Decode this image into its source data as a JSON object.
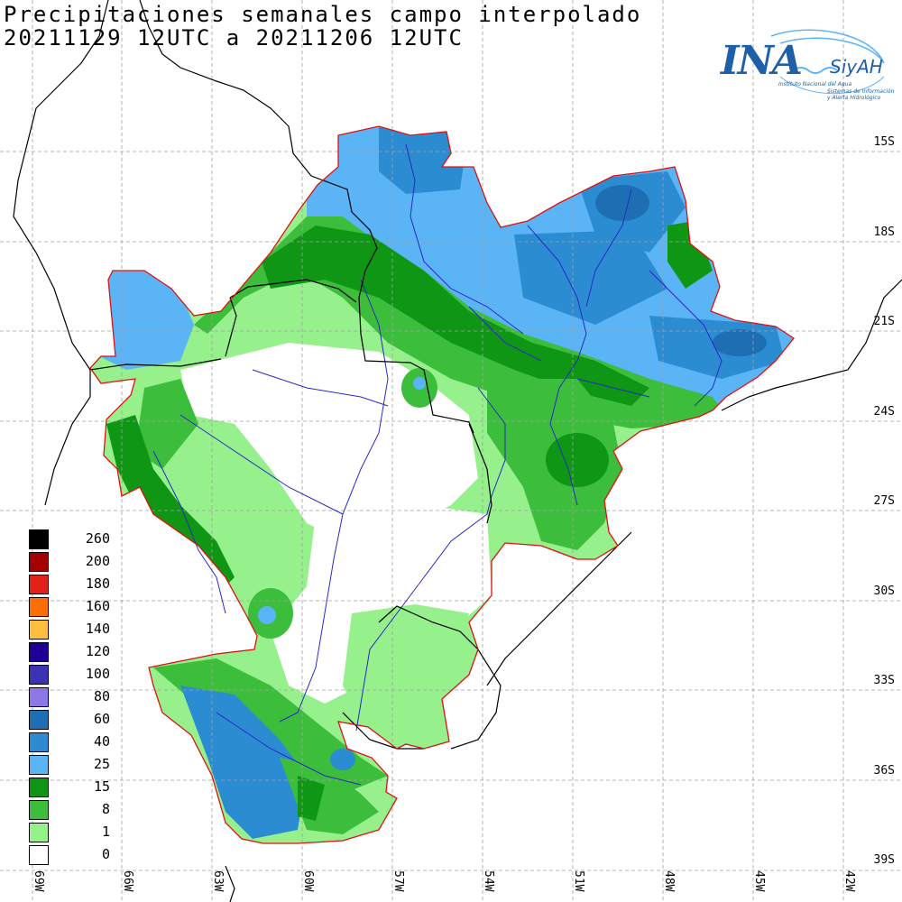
{
  "title": {
    "line1": "Precipitaciones semanales campo interpolado",
    "line2": "20211129 12UTC a 20211206 12UTC"
  },
  "logo": {
    "ina": "INA",
    "siyah": "SiyAH",
    "subtitle1": "Instituto Nacional del Agua",
    "subtitle2": "Sistemas de Información",
    "subtitle3": "y Alerta Hidrológico"
  },
  "lat_labels": [
    "15S",
    "18S",
    "21S",
    "24S",
    "27S",
    "30S",
    "33S",
    "36S",
    "39S"
  ],
  "lon_labels": [
    "69W",
    "66W",
    "63W",
    "60W",
    "57W",
    "54W",
    "51W",
    "48W",
    "45W",
    "42W"
  ],
  "legend": [
    {
      "label": "260",
      "color": "#000000"
    },
    {
      "label": "200",
      "color": "#a50000"
    },
    {
      "label": "180",
      "color": "#e32119"
    },
    {
      "label": "160",
      "color": "#ff6e00"
    },
    {
      "label": "140",
      "color": "#ffbe3c"
    },
    {
      "label": "120",
      "color": "#1e0096"
    },
    {
      "label": "100",
      "color": "#3c32b4"
    },
    {
      "label": "80",
      "color": "#8c78e6"
    },
    {
      "label": "60",
      "color": "#1e6eb4"
    },
    {
      "label": "40",
      "color": "#2b8cd2"
    },
    {
      "label": "25",
      "color": "#5ab4f5"
    },
    {
      "label": "15",
      "color": "#0e9614"
    },
    {
      "label": "8",
      "color": "#3cbe3c"
    },
    {
      "label": "1",
      "color": "#96f08c"
    },
    {
      "label": "0",
      "color": "#ffffff"
    }
  ],
  "colors": {
    "basin_outline": "#e01010",
    "rivers": "#2828c8",
    "borders": "#000000",
    "grid": "#a0a0a0"
  }
}
